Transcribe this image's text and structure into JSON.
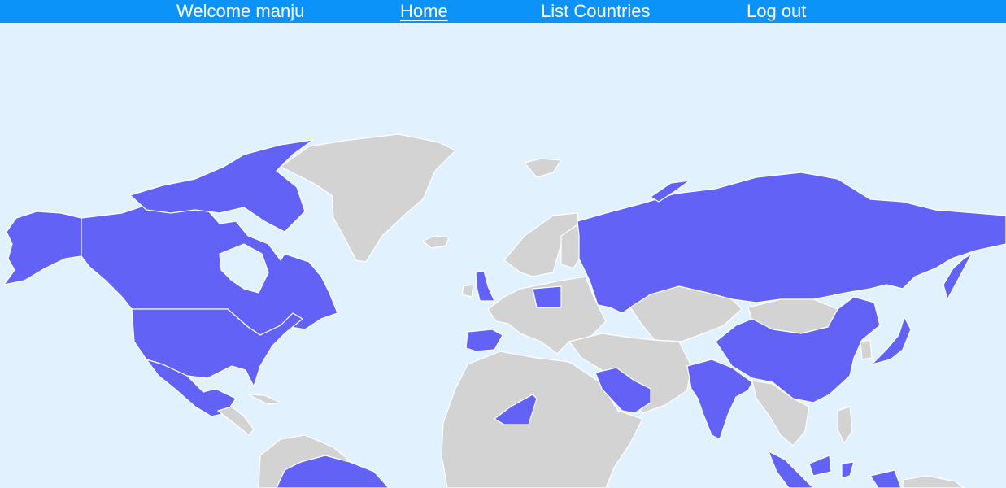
{
  "navbar": {
    "welcome": "Welcome manju",
    "home": "Home",
    "list_countries": "List Countries",
    "logout": "Log out"
  },
  "map": {
    "colors": {
      "ocean": "#e1f1fd",
      "highlighted": "#6262f7",
      "other": "#d3d3d3",
      "border": "#ffffff",
      "navbar": "#0c93f9"
    },
    "highlighted_countries": [
      "Canada",
      "United States",
      "Mexico",
      "Russia",
      "China",
      "India",
      "Saudi Arabia",
      "Niger",
      "Spain",
      "United Kingdom",
      "Poland",
      "Japan",
      "Indonesia",
      "Venezuela",
      "Brazil"
    ]
  }
}
